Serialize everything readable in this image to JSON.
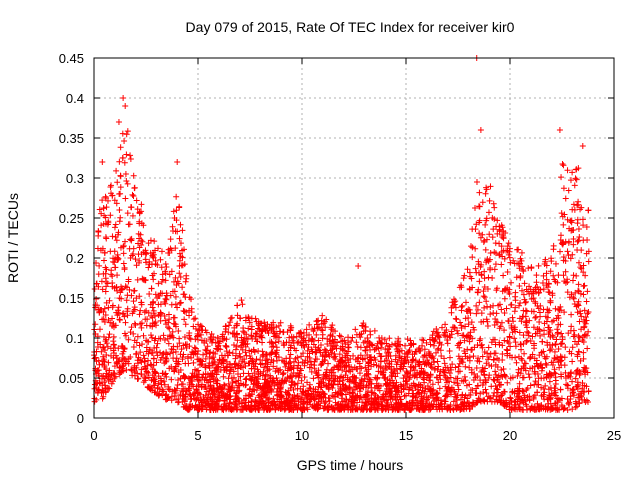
{
  "chart_data": {
    "type": "scatter",
    "title": "Day 079 of 2015, Rate Of TEC Index for receiver kir0",
    "xlabel": "GPS time / hours",
    "ylabel": "ROTI / TECUs",
    "xlim": [
      0,
      25
    ],
    "ylim": [
      0,
      0.45
    ],
    "x_ticks": [
      0,
      5,
      10,
      15,
      20,
      25
    ],
    "x_tick_labels": [
      "0",
      "5",
      "10",
      "15",
      "20",
      "25"
    ],
    "y_ticks": [
      0,
      0.05,
      0.1,
      0.15,
      0.2,
      0.25,
      0.3,
      0.35,
      0.4,
      0.45
    ],
    "y_tick_labels": [
      "0",
      "0.05",
      "0.1",
      "0.15",
      "0.2",
      "0.25",
      "0.3",
      "0.35",
      "0.4",
      "0.45"
    ],
    "grid": true,
    "marker": "plus",
    "color": "#ff0000",
    "envelope": {
      "x": [
        0,
        0.3,
        0.6,
        1.0,
        1.5,
        2.0,
        2.5,
        3.0,
        3.5,
        4.0,
        4.5,
        5.0,
        6.0,
        7.0,
        8.0,
        9.0,
        10.0,
        11.0,
        12.0,
        13.0,
        14.0,
        15.0,
        16.0,
        17.0,
        18.0,
        18.5,
        19.0,
        19.5,
        20.0,
        21.0,
        22.0,
        22.5,
        23.0,
        23.5,
        23.8
      ],
      "y_low": [
        0.02,
        0.02,
        0.03,
        0.05,
        0.06,
        0.05,
        0.04,
        0.03,
        0.02,
        0.02,
        0.01,
        0.01,
        0.01,
        0.01,
        0.01,
        0.01,
        0.01,
        0.01,
        0.01,
        0.01,
        0.01,
        0.01,
        0.01,
        0.01,
        0.01,
        0.02,
        0.02,
        0.02,
        0.01,
        0.01,
        0.01,
        0.01,
        0.01,
        0.02,
        0.02
      ],
      "y_high": [
        0.15,
        0.3,
        0.28,
        0.3,
        0.38,
        0.3,
        0.25,
        0.22,
        0.2,
        0.3,
        0.17,
        0.12,
        0.1,
        0.15,
        0.12,
        0.12,
        0.11,
        0.13,
        0.1,
        0.12,
        0.1,
        0.1,
        0.1,
        0.13,
        0.2,
        0.33,
        0.3,
        0.25,
        0.22,
        0.2,
        0.2,
        0.32,
        0.33,
        0.3,
        0.26
      ]
    },
    "extremes": [
      {
        "x": 1.4,
        "y": 0.4
      },
      {
        "x": 1.5,
        "y": 0.39
      },
      {
        "x": 1.2,
        "y": 0.37
      },
      {
        "x": 0.4,
        "y": 0.32
      },
      {
        "x": 4.0,
        "y": 0.32
      },
      {
        "x": 12.7,
        "y": 0.19
      },
      {
        "x": 18.4,
        "y": 0.45
      },
      {
        "x": 18.6,
        "y": 0.36
      },
      {
        "x": 22.4,
        "y": 0.36
      },
      {
        "x": 23.5,
        "y": 0.34
      }
    ]
  }
}
